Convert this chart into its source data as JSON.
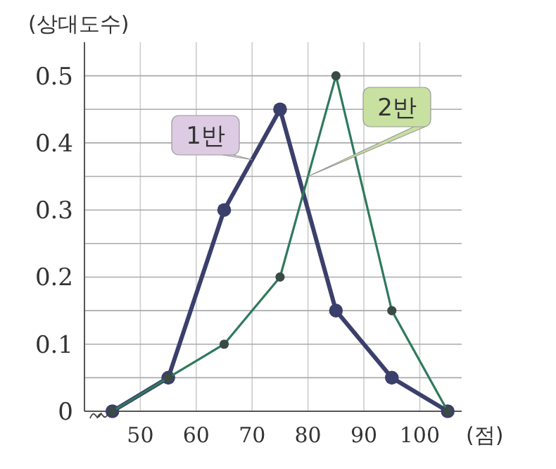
{
  "chart_data": {
    "type": "line",
    "ylabel": "(상대도수)",
    "xlabel": "(점)",
    "x": [
      45,
      55,
      65,
      75,
      85,
      95,
      105
    ],
    "xlim": [
      40,
      107.5
    ],
    "xticks": [
      50,
      60,
      70,
      80,
      90,
      100
    ],
    "ylim": [
      0,
      0.55
    ],
    "yticks": [
      0,
      {
        "value": 0.05,
        "label": null
      },
      0.1,
      {
        "value": 0.15,
        "label": null
      },
      0.2,
      {
        "value": 0.25,
        "label": null
      },
      0.3,
      {
        "value": 0.35,
        "label": null
      },
      0.4,
      {
        "value": 0.45,
        "label": null
      },
      0.5
    ],
    "grid": true,
    "marker": "circle",
    "line_style": "solid",
    "legend": false,
    "series": [
      {
        "name": "1반",
        "color": "#3b3f6b",
        "values": [
          0,
          0.05,
          0.3,
          0.45,
          0.15,
          0.05,
          0
        ]
      },
      {
        "name": "2반",
        "color": "#2f7a5c",
        "values": [
          0,
          0.05,
          0.1,
          0.2,
          0.5,
          0.15,
          0
        ]
      }
    ]
  }
}
